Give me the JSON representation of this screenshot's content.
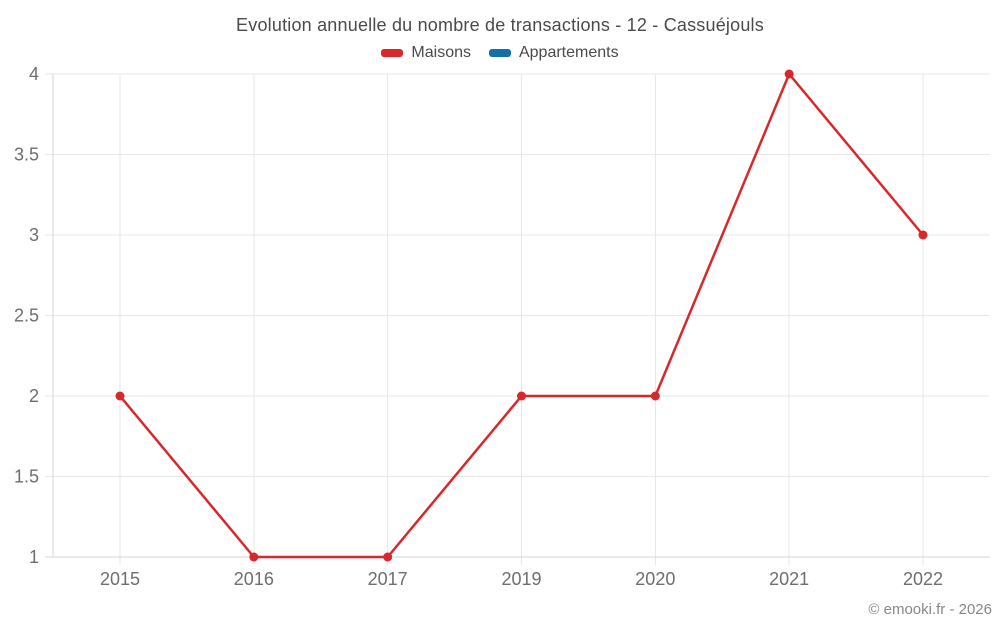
{
  "title": "Evolution annuelle du nombre de transactions - 12 - Cassuéjouls",
  "legend": [
    {
      "label": "Maisons",
      "color": "#d7282c"
    },
    {
      "label": "Appartements",
      "color": "#1470a8"
    }
  ],
  "copyright": "© emooki.fr - 2026",
  "colors": {
    "series_maisons": "#d7282c",
    "series_appartements": "#1470a8",
    "grid": "#e7e7e7",
    "axis": "#d4d4d4",
    "tick_label": "#6e6e6e",
    "title_text": "#4a4a4a",
    "copyright_text": "#878787",
    "background": "#ffffff"
  },
  "chart_data": {
    "type": "line",
    "title": "Evolution annuelle du nombre de transactions - 12 - Cassuéjouls",
    "categories": [
      "2015",
      "2016",
      "2017",
      "2019",
      "2020",
      "2021",
      "2022"
    ],
    "series": [
      {
        "name": "Maisons",
        "color": "#d7282c",
        "values": [
          2,
          1,
          1,
          2,
          2,
          4,
          3
        ]
      },
      {
        "name": "Appartements",
        "color": "#1470a8",
        "values": []
      }
    ],
    "xlabel": "",
    "ylabel": "",
    "ylim": [
      1,
      4
    ],
    "yticks": [
      1,
      1.5,
      2,
      2.5,
      3,
      3.5,
      4
    ],
    "grid": true,
    "legend_position": "top",
    "marker": "circle"
  }
}
